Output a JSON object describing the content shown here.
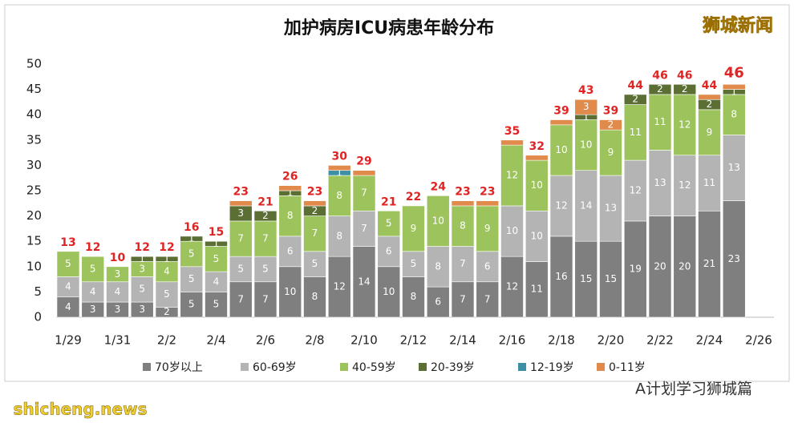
{
  "chart_data": {
    "type": "stacked_bar",
    "title": "加护病房ICU病患年龄分布",
    "categories": [
      "1/29",
      null,
      "1/31",
      null,
      "2/2",
      null,
      "2/4",
      null,
      "2/6",
      null,
      "2/8",
      null,
      "2/10",
      null,
      "2/12",
      null,
      "2/14",
      null,
      "2/16",
      null,
      "2/18",
      null,
      "2/20",
      null,
      "2/22",
      null,
      "2/24",
      null,
      "2/26"
    ],
    "series": [
      {
        "name": "70岁以上",
        "color": "#7f7f7f",
        "values": [
          4,
          3,
          3,
          3,
          2,
          5,
          5,
          7,
          7,
          10,
          8,
          12,
          14,
          10,
          8,
          6,
          7,
          7,
          12,
          11,
          16,
          15,
          15,
          19,
          20,
          20,
          21,
          23,
          null
        ]
      },
      {
        "name": "60-69岁",
        "color": "#b4b4b4",
        "values": [
          4,
          4,
          4,
          5,
          5,
          5,
          4,
          5,
          5,
          6,
          5,
          8,
          7,
          6,
          5,
          8,
          7,
          6,
          10,
          10,
          12,
          14,
          13,
          12,
          13,
          12,
          11,
          13,
          null
        ]
      },
      {
        "name": "40-59岁",
        "color": "#9cc35c",
        "values": [
          5,
          5,
          3,
          3,
          4,
          5,
          5,
          7,
          7,
          8,
          7,
          8,
          7,
          5,
          9,
          10,
          8,
          9,
          12,
          10,
          10,
          10,
          9,
          11,
          11,
          12,
          9,
          8,
          null
        ]
      },
      {
        "name": "20-39岁",
        "color": "#5b6f34",
        "values": [
          null,
          null,
          null,
          1,
          1,
          1,
          1,
          3,
          2,
          1,
          2,
          null,
          null,
          null,
          null,
          null,
          null,
          null,
          null,
          null,
          null,
          1,
          null,
          2,
          2,
          2,
          2,
          1,
          null
        ]
      },
      {
        "name": "12-19岁",
        "color": "#3d8fa6",
        "values": [
          null,
          null,
          null,
          null,
          null,
          null,
          null,
          null,
          null,
          null,
          null,
          1,
          null,
          null,
          null,
          null,
          null,
          null,
          null,
          null,
          null,
          null,
          null,
          null,
          null,
          null,
          null,
          null,
          null
        ]
      },
      {
        "name": "0-11岁",
        "color": "#e08a4c",
        "values": [
          null,
          null,
          null,
          null,
          null,
          null,
          null,
          1,
          null,
          1,
          1,
          1,
          1,
          null,
          null,
          null,
          1,
          1,
          1,
          1,
          1,
          3,
          2,
          null,
          null,
          null,
          1,
          1,
          null
        ]
      }
    ],
    "totals": [
      13,
      12,
      10,
      12,
      12,
      16,
      15,
      23,
      21,
      26,
      23,
      30,
      29,
      21,
      22,
      24,
      23,
      23,
      35,
      32,
      39,
      43,
      39,
      44,
      46,
      46,
      44,
      46,
      null
    ],
    "ylim": [
      0,
      50
    ],
    "yticks": [
      0,
      5,
      10,
      15,
      20,
      25,
      30,
      35,
      40,
      45,
      50
    ],
    "grid": false,
    "watermarks": [
      "狮城新闻",
      "A计划学习狮城篇",
      "shicheng.news"
    ]
  }
}
